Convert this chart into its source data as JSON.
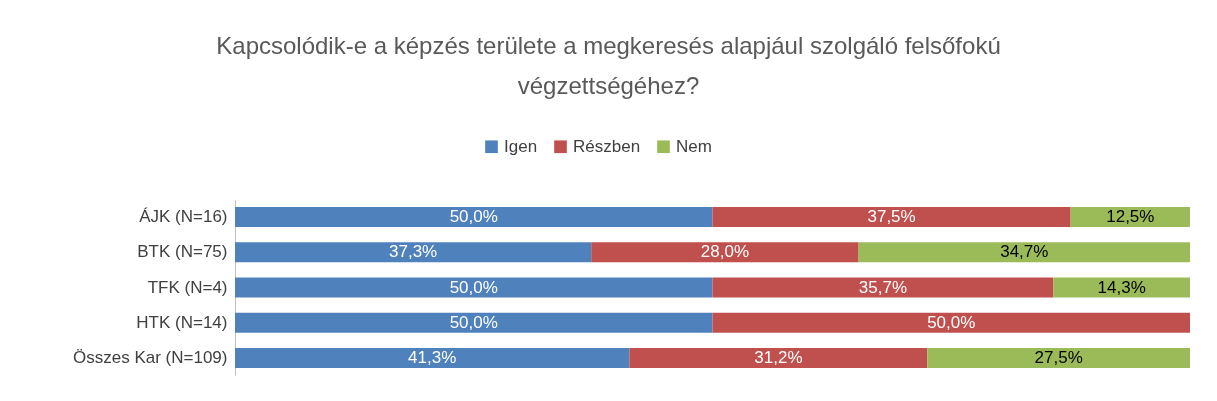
{
  "chart_data": {
    "type": "bar",
    "orientation": "horizontal",
    "stacked": true,
    "title": "Kapcsolódik-e a képzés területe a megkeresés alapjául szolgáló felsőfokú végzettségéhez?",
    "categories": [
      "ÁJK (N=16)",
      "BTK (N=75)",
      "TFK (N=4)",
      "HTK (N=14)",
      "Összes Kar (N=109)"
    ],
    "legend": "top",
    "grid": false,
    "series": [
      {
        "name": "Igen",
        "color": "#4f81bd",
        "values": [
          50.0,
          37.3,
          50.0,
          50.0,
          41.3
        ],
        "value_labels": [
          "50,0%",
          "37,3%",
          "50,0%",
          "50,0%",
          "41,3%"
        ]
      },
      {
        "name": "Részben",
        "color": "#c0504d",
        "values": [
          37.5,
          28.0,
          35.7,
          50.0,
          31.2
        ],
        "value_labels": [
          "37,5%",
          "28,0%",
          "35,7%",
          "50,0%",
          "31,2%"
        ]
      },
      {
        "name": "Nem",
        "color": "#9bbb59",
        "values": [
          12.5,
          34.7,
          14.3,
          null,
          27.5
        ],
        "value_labels": [
          "12,5%",
          "34,7%",
          "14,3%",
          null,
          "27,5%"
        ]
      }
    ]
  }
}
